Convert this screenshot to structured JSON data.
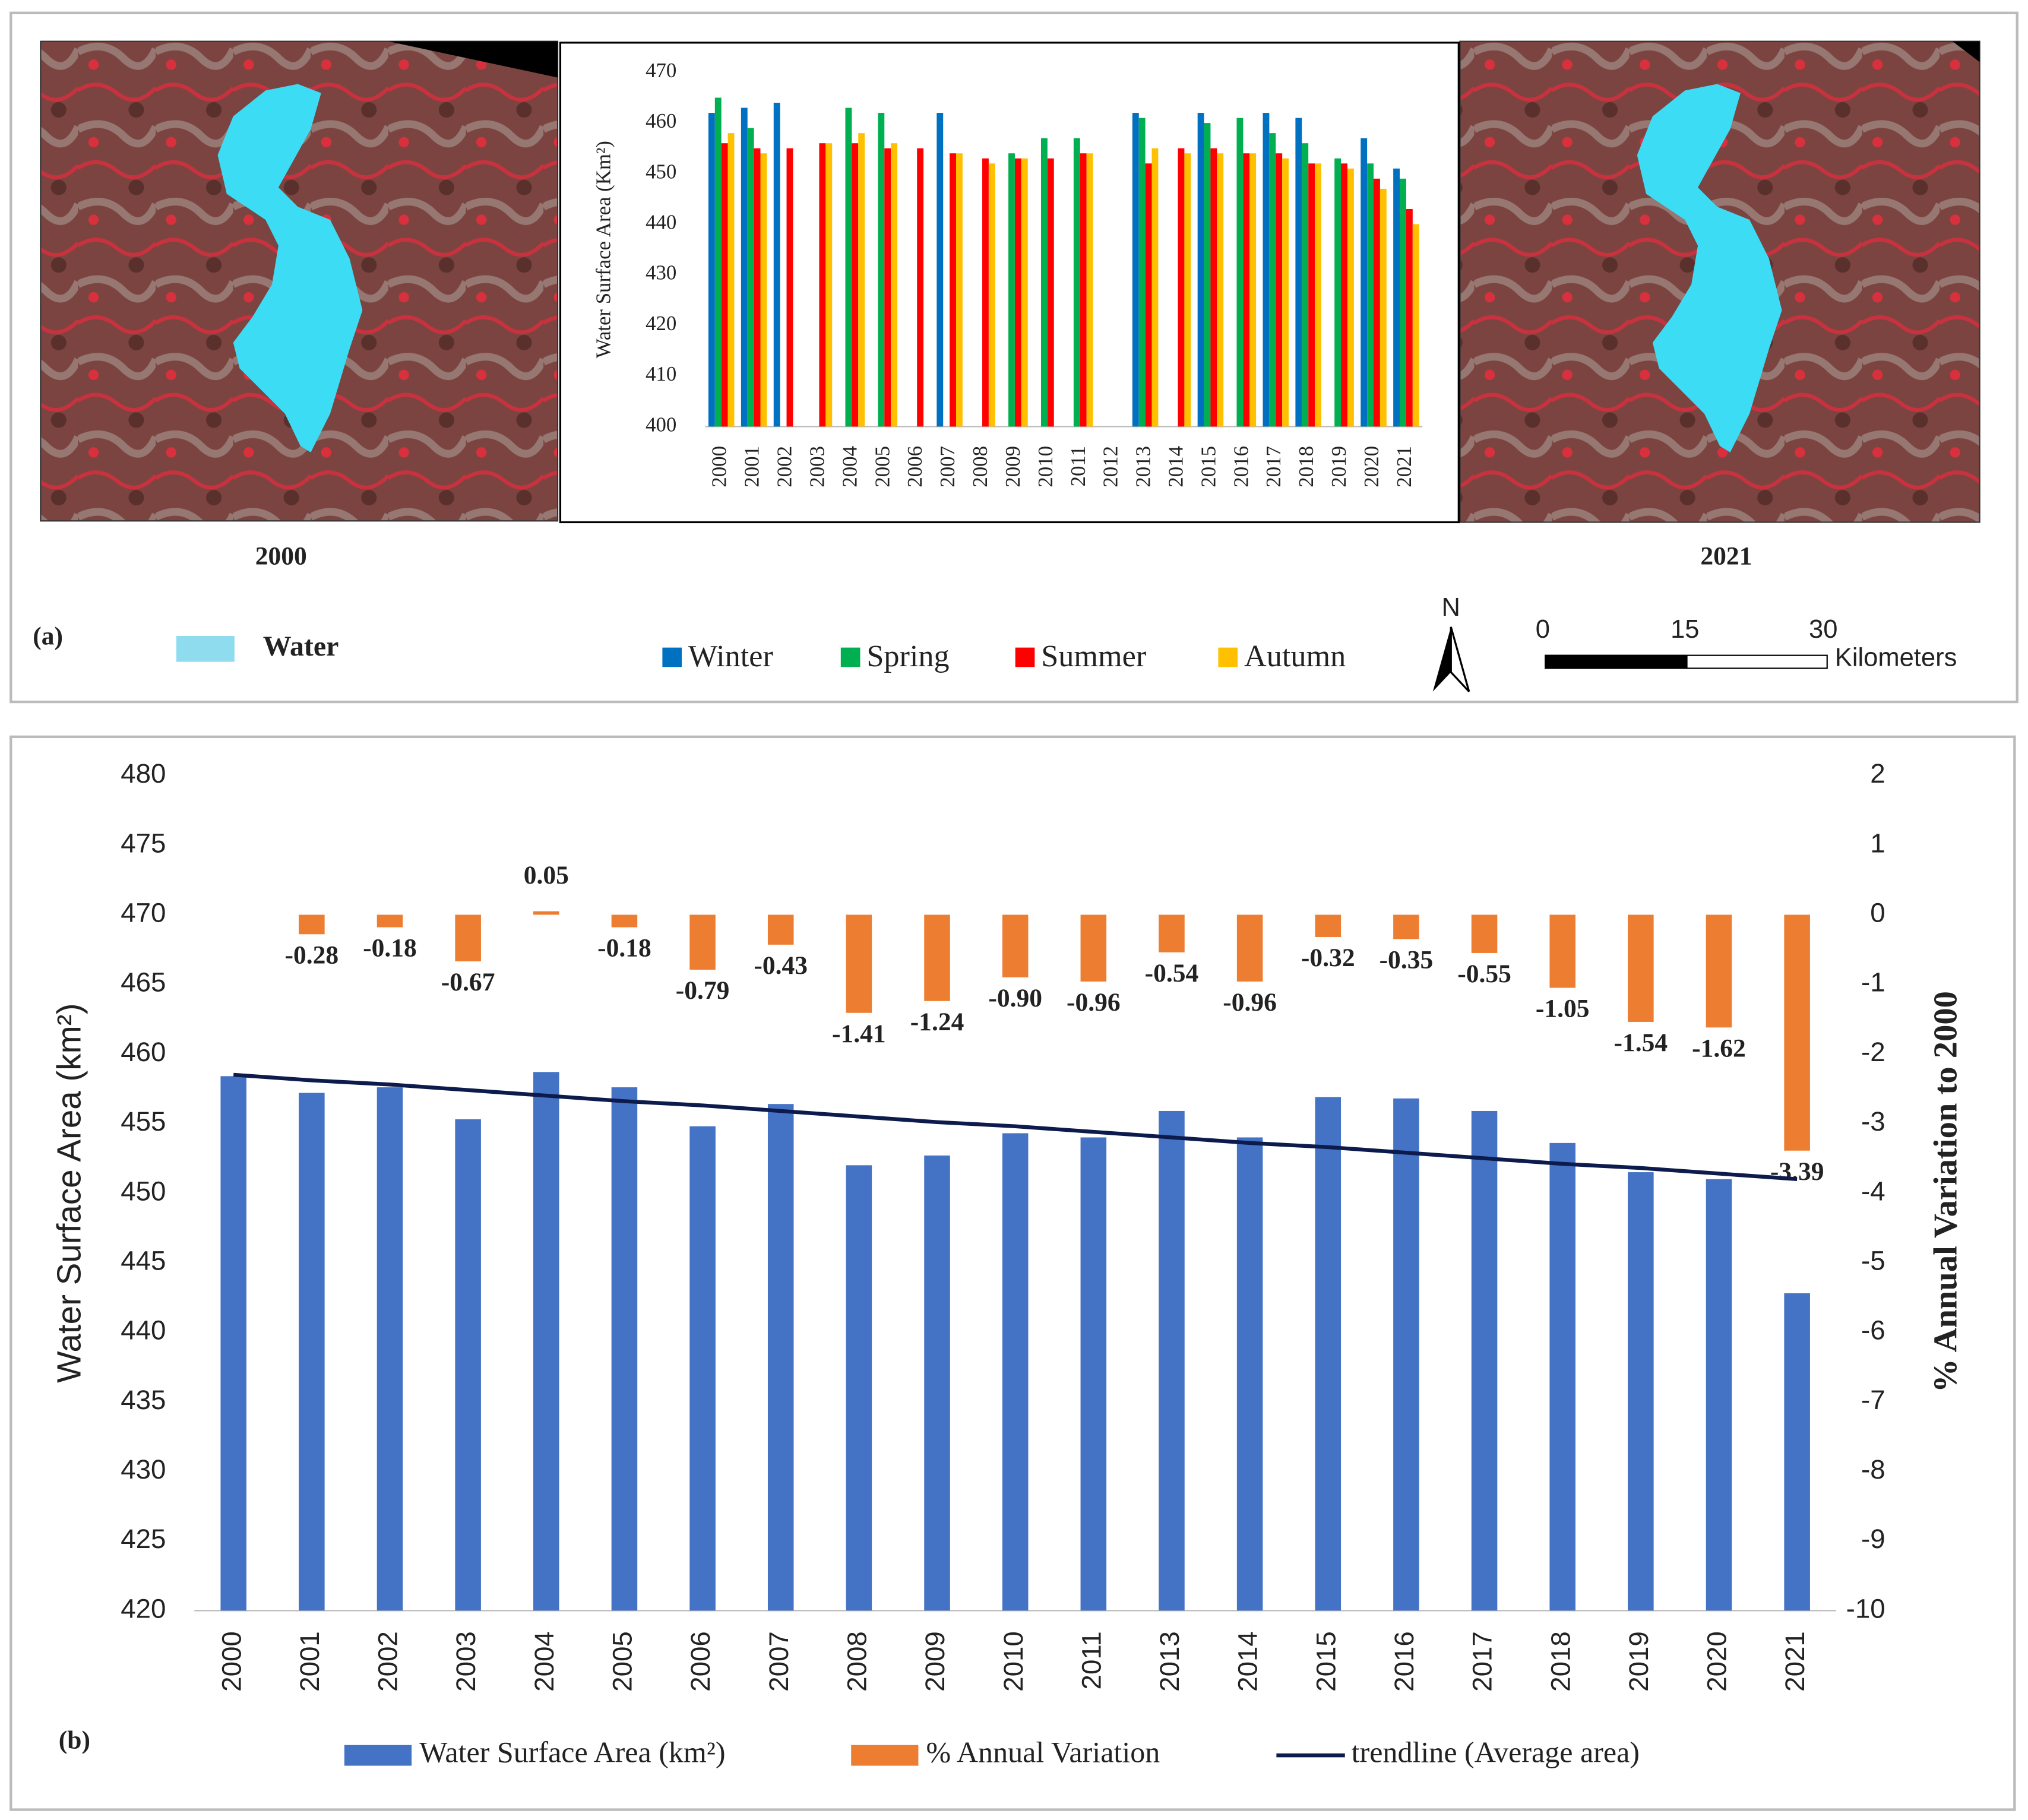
{
  "panel_labels": [
    "(a)",
    "(b)"
  ],
  "maps": [
    {
      "caption": "2000"
    },
    {
      "caption": "2021"
    }
  ],
  "map_legend": {
    "label": "Water",
    "color": "#8fdcef"
  },
  "north_arrow": "N",
  "scale_bar": {
    "labels": [
      "0",
      "15",
      "30"
    ],
    "unit": "Kilometers"
  },
  "chart_data": [
    {
      "type": "bar",
      "y_label": "Water Surface Area (Km²)",
      "categories": [
        "2000",
        "2001",
        "2002",
        "2003",
        "2004",
        "2005",
        "2006",
        "2007",
        "2008",
        "2009",
        "2010",
        "2011",
        "2012",
        "2013",
        "2014",
        "2015",
        "2016",
        "2017",
        "2018",
        "2019",
        "2020",
        "2021"
      ],
      "series": [
        {
          "name": "Winter",
          "color": "#0070c0",
          "values": [
            462,
            463,
            464,
            null,
            null,
            null,
            null,
            462,
            null,
            null,
            null,
            null,
            null,
            462,
            null,
            462,
            null,
            462,
            461,
            null,
            457,
            451
          ]
        },
        {
          "name": "Spring",
          "color": "#00b050",
          "values": [
            465,
            459,
            null,
            null,
            463,
            462,
            null,
            null,
            null,
            454,
            457,
            457,
            null,
            461,
            null,
            460,
            461,
            458,
            456,
            453,
            452,
            449
          ]
        },
        {
          "name": "Summer",
          "color": "#ff0000",
          "values": [
            456,
            455,
            455,
            456,
            456,
            455,
            455,
            454,
            453,
            453,
            453,
            454,
            null,
            452,
            455,
            455,
            454,
            454,
            452,
            452,
            449,
            443
          ]
        },
        {
          "name": "Autumn",
          "color": "#ffc000",
          "values": [
            458,
            454,
            null,
            456,
            458,
            456,
            null,
            454,
            452,
            453,
            null,
            454,
            null,
            455,
            454,
            454,
            454,
            453,
            452,
            451,
            447,
            440
          ]
        }
      ],
      "ylim": [
        400,
        470
      ],
      "yticks": [
        400,
        410,
        420,
        430,
        440,
        450,
        460,
        470
      ]
    },
    {
      "type": "bar",
      "y_label": "Water Surface Area (km²)",
      "y2_label": "% Annual Variation to 2000",
      "categories": [
        "2000",
        "2001",
        "2002",
        "2003",
        "2004",
        "2005",
        "2006",
        "2007",
        "2008",
        "2009",
        "2010",
        "2011",
        "2013",
        "2014",
        "2015",
        "2016",
        "2017",
        "2018",
        "2019",
        "2020",
        "2021"
      ],
      "series": [
        {
          "name": "Water Surface Area (km²)",
          "color": "#4472c4",
          "values": [
            458.4,
            457.2,
            457.6,
            455.3,
            458.7,
            457.6,
            454.8,
            456.4,
            452.0,
            452.7,
            454.3,
            454.0,
            455.9,
            454.0,
            456.9,
            456.8,
            455.9,
            453.6,
            451.5,
            451.0,
            442.8
          ]
        },
        {
          "name": "% Annual Variation",
          "color": "#ed7d31",
          "axis": "y2",
          "values": [
            null,
            -0.28,
            -0.18,
            -0.67,
            0.05,
            -0.18,
            -0.79,
            -0.43,
            -1.41,
            -1.24,
            -0.9,
            -0.96,
            -0.54,
            -0.96,
            -0.32,
            -0.35,
            -0.55,
            -1.05,
            -1.54,
            -1.62,
            -3.39
          ],
          "value_labels": [
            null,
            "-0.28",
            "-0.18",
            "-0.67",
            "0.05",
            "-0.18",
            "-0.79",
            "-0.43",
            "-1.41",
            "-1.24",
            "-0.90",
            "-0.96",
            "-0.54",
            "-0.96",
            "-0.32",
            "-0.35",
            "-0.55",
            "-1.05",
            "-1.54",
            "-1.62",
            "-3.39"
          ]
        },
        {
          "name": "trendline (Average area)",
          "color": "#0d1b4c",
          "type": "line",
          "values": [
            458.5,
            458.1,
            457.8,
            457.4,
            457.0,
            456.6,
            456.3,
            455.9,
            455.5,
            455.1,
            454.8,
            454.4,
            454.0,
            453.6,
            453.3,
            452.9,
            452.5,
            452.1,
            451.8,
            451.4,
            451.0
          ]
        }
      ],
      "ylim": [
        420,
        480
      ],
      "yticks": [
        420,
        425,
        430,
        435,
        440,
        445,
        450,
        455,
        460,
        465,
        470,
        475,
        480
      ],
      "y2lim": [
        -10,
        2
      ],
      "y2ticks": [
        -10,
        -9,
        -8,
        -7,
        -6,
        -5,
        -4,
        -3,
        -2,
        -1,
        0,
        1,
        2
      ]
    }
  ]
}
